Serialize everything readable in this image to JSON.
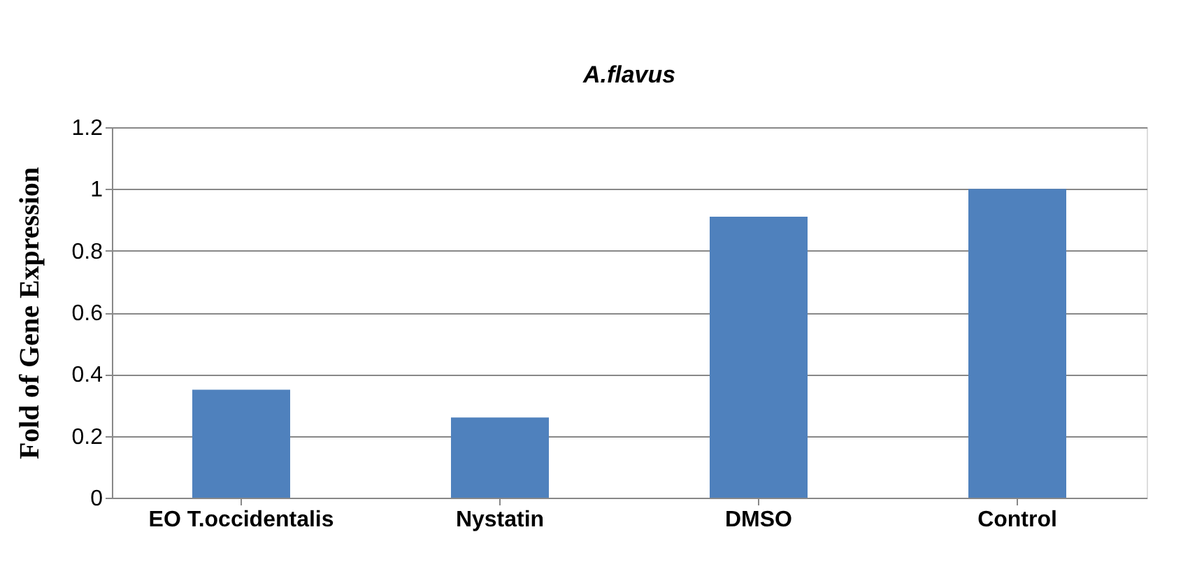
{
  "chart_data": {
    "type": "bar",
    "title": "A.flavus",
    "ylabel": "Fold of Gene  Expression",
    "categories": [
      "EO T.occidentalis",
      "Nystatin",
      "DMSO",
      "Control"
    ],
    "values": [
      0.35,
      0.26,
      0.91,
      1.0
    ],
    "color": "#4f81bd",
    "ylim": [
      0,
      1.2
    ],
    "yticks": [
      0,
      0.2,
      0.4,
      0.6,
      0.8,
      1,
      1.2
    ],
    "grid": "y"
  }
}
